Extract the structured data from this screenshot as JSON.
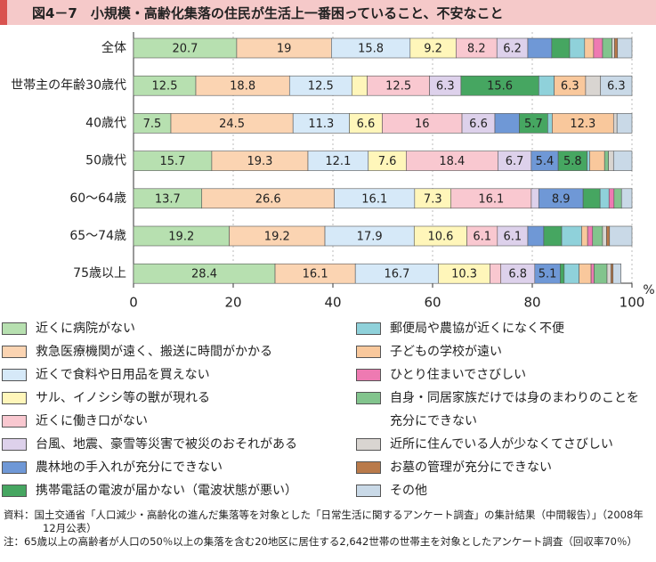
{
  "chart_data": {
    "type": "stacked-barh",
    "title": "図4－7　小規模・高齢化集落の住民が生活上一番困っていること、不安なこと",
    "categories": [
      "全体",
      "世帯主の年齢30歳代",
      "40歳代",
      "50歳代",
      "60〜64歳",
      "65〜74歳",
      "75歳以上"
    ],
    "xlim": [
      0,
      100
    ],
    "xticks": [
      0,
      20,
      40,
      60,
      80,
      100
    ],
    "x_unit": "%",
    "grid": true,
    "series": [
      {
        "name": "近くに病院がない",
        "color": "#b7e0b0",
        "values": [
          20.7,
          12.5,
          7.5,
          15.7,
          13.7,
          19.2,
          28.4
        ]
      },
      {
        "name": "救急医療機関が遠く、搬送に時間がかかる",
        "color": "#fbd4b2",
        "values": [
          19.0,
          18.8,
          24.5,
          19.3,
          26.6,
          19.2,
          16.1
        ]
      },
      {
        "name": "近くで食料や日用品を買えない",
        "color": "#d6e9f8",
        "values": [
          15.8,
          12.5,
          11.3,
          12.1,
          16.1,
          17.9,
          16.7
        ]
      },
      {
        "name": "サル、イノシシ等の獣が現れる",
        "color": "#fff6ba",
        "values": [
          9.2,
          3.1,
          6.6,
          7.6,
          7.3,
          10.6,
          10.3
        ]
      },
      {
        "name": "近くに働き口がない",
        "color": "#f9c8d0",
        "values": [
          8.2,
          12.5,
          16.0,
          18.4,
          16.1,
          6.1,
          2.2
        ]
      },
      {
        "name": "台風、地震、豪雪等災害で被災のおそれがある",
        "color": "#ddd1eb",
        "values": [
          6.2,
          6.3,
          6.6,
          6.7,
          1.5,
          6.1,
          6.8
        ]
      },
      {
        "name": "農林地の手入れが充分にできない",
        "color": "#6f98d6",
        "values": [
          4.8,
          0,
          4.9,
          5.4,
          8.9,
          3.2,
          5.1
        ]
      },
      {
        "name": "携帯電話の電波が届かない（電波状態が悪い）",
        "color": "#46a661",
        "values": [
          3.6,
          15.6,
          5.7,
          5.8,
          3.4,
          3.6,
          0.8
        ]
      },
      {
        "name": "郵便局や農協が近くになく不便",
        "color": "#8fd1da",
        "values": [
          3.0,
          3.1,
          0.9,
          0.5,
          1.8,
          4.0,
          3.0
        ]
      },
      {
        "name": "子どもの学校が遠い",
        "color": "#f9c89c",
        "values": [
          1.8,
          6.3,
          12.3,
          3.0,
          0,
          1.2,
          2.4
        ]
      },
      {
        "name": "ひとり住まいでさびしい",
        "color": "#ee7ab2",
        "values": [
          1.8,
          0,
          0,
          0,
          1.0,
          1.0,
          0.6
        ]
      },
      {
        "name": "自身・同居家族だけでは身のまわりのことを充分にできない",
        "color": "#82c48d",
        "values": [
          1.9,
          0,
          0,
          0.8,
          1.5,
          2.0,
          2.6
        ]
      },
      {
        "name": "近所に住んでいる人が少なくてさびしい",
        "color": "#d9d5d1",
        "values": [
          0.5,
          3.0,
          0.7,
          1.0,
          0,
          0.8,
          0.8
        ]
      },
      {
        "name": "お墓の管理が充分にできない",
        "color": "#b97a4a",
        "values": [
          0.6,
          0,
          0,
          0,
          0,
          0.6,
          0.4
        ]
      },
      {
        "name": "その他",
        "color": "#c9d9e7",
        "values": [
          2.9,
          6.3,
          3.0,
          3.7,
          2.1,
          4.5,
          1.6
        ]
      }
    ],
    "source": "資料：国土交通省「人口減少・高齢化の進んだ集落等を対象とした「日常生活に関するアンケート調査」の集計結果（中間報告）」（2008年12月公表）",
    "note": "注：65歳以上の高齢者が人口の50％以上の集落を含む20地区に居住する2,642世帯の世帯主を対象としたアンケート調査（回収率70％）"
  }
}
